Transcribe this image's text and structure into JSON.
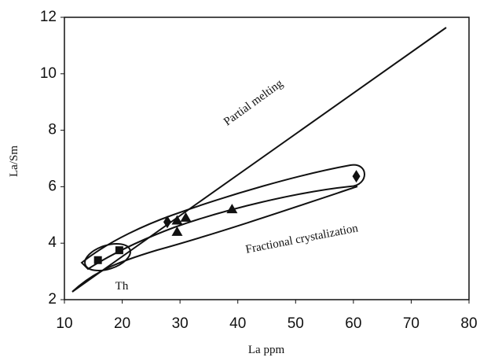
{
  "chart_data": {
    "type": "scatter",
    "xlabel": "La ppm",
    "ylabel": "La/Sm",
    "xlim": [
      10,
      80
    ],
    "ylim": [
      2,
      12
    ],
    "xticks": [
      10,
      20,
      30,
      40,
      50,
      60,
      70,
      80
    ],
    "yticks": [
      2,
      4,
      6,
      8,
      10,
      12
    ],
    "annotations": [
      "Partial melting",
      "Fractional crystalization",
      "Th"
    ],
    "series": [
      {
        "marker": "square",
        "color": "#111111",
        "x": [
          15.8,
          19.5
        ],
        "y": [
          3.4,
          3.75
        ]
      },
      {
        "marker": "diamond",
        "color": "#111111",
        "x": [
          27.8,
          60.5
        ],
        "y": [
          4.75,
          6.37
        ]
      },
      {
        "marker": "triangle",
        "color": "#111111",
        "x": [
          29.5,
          29.5,
          31,
          39
        ],
        "y": [
          4.8,
          4.4,
          4.9,
          5.2
        ]
      }
    ]
  }
}
